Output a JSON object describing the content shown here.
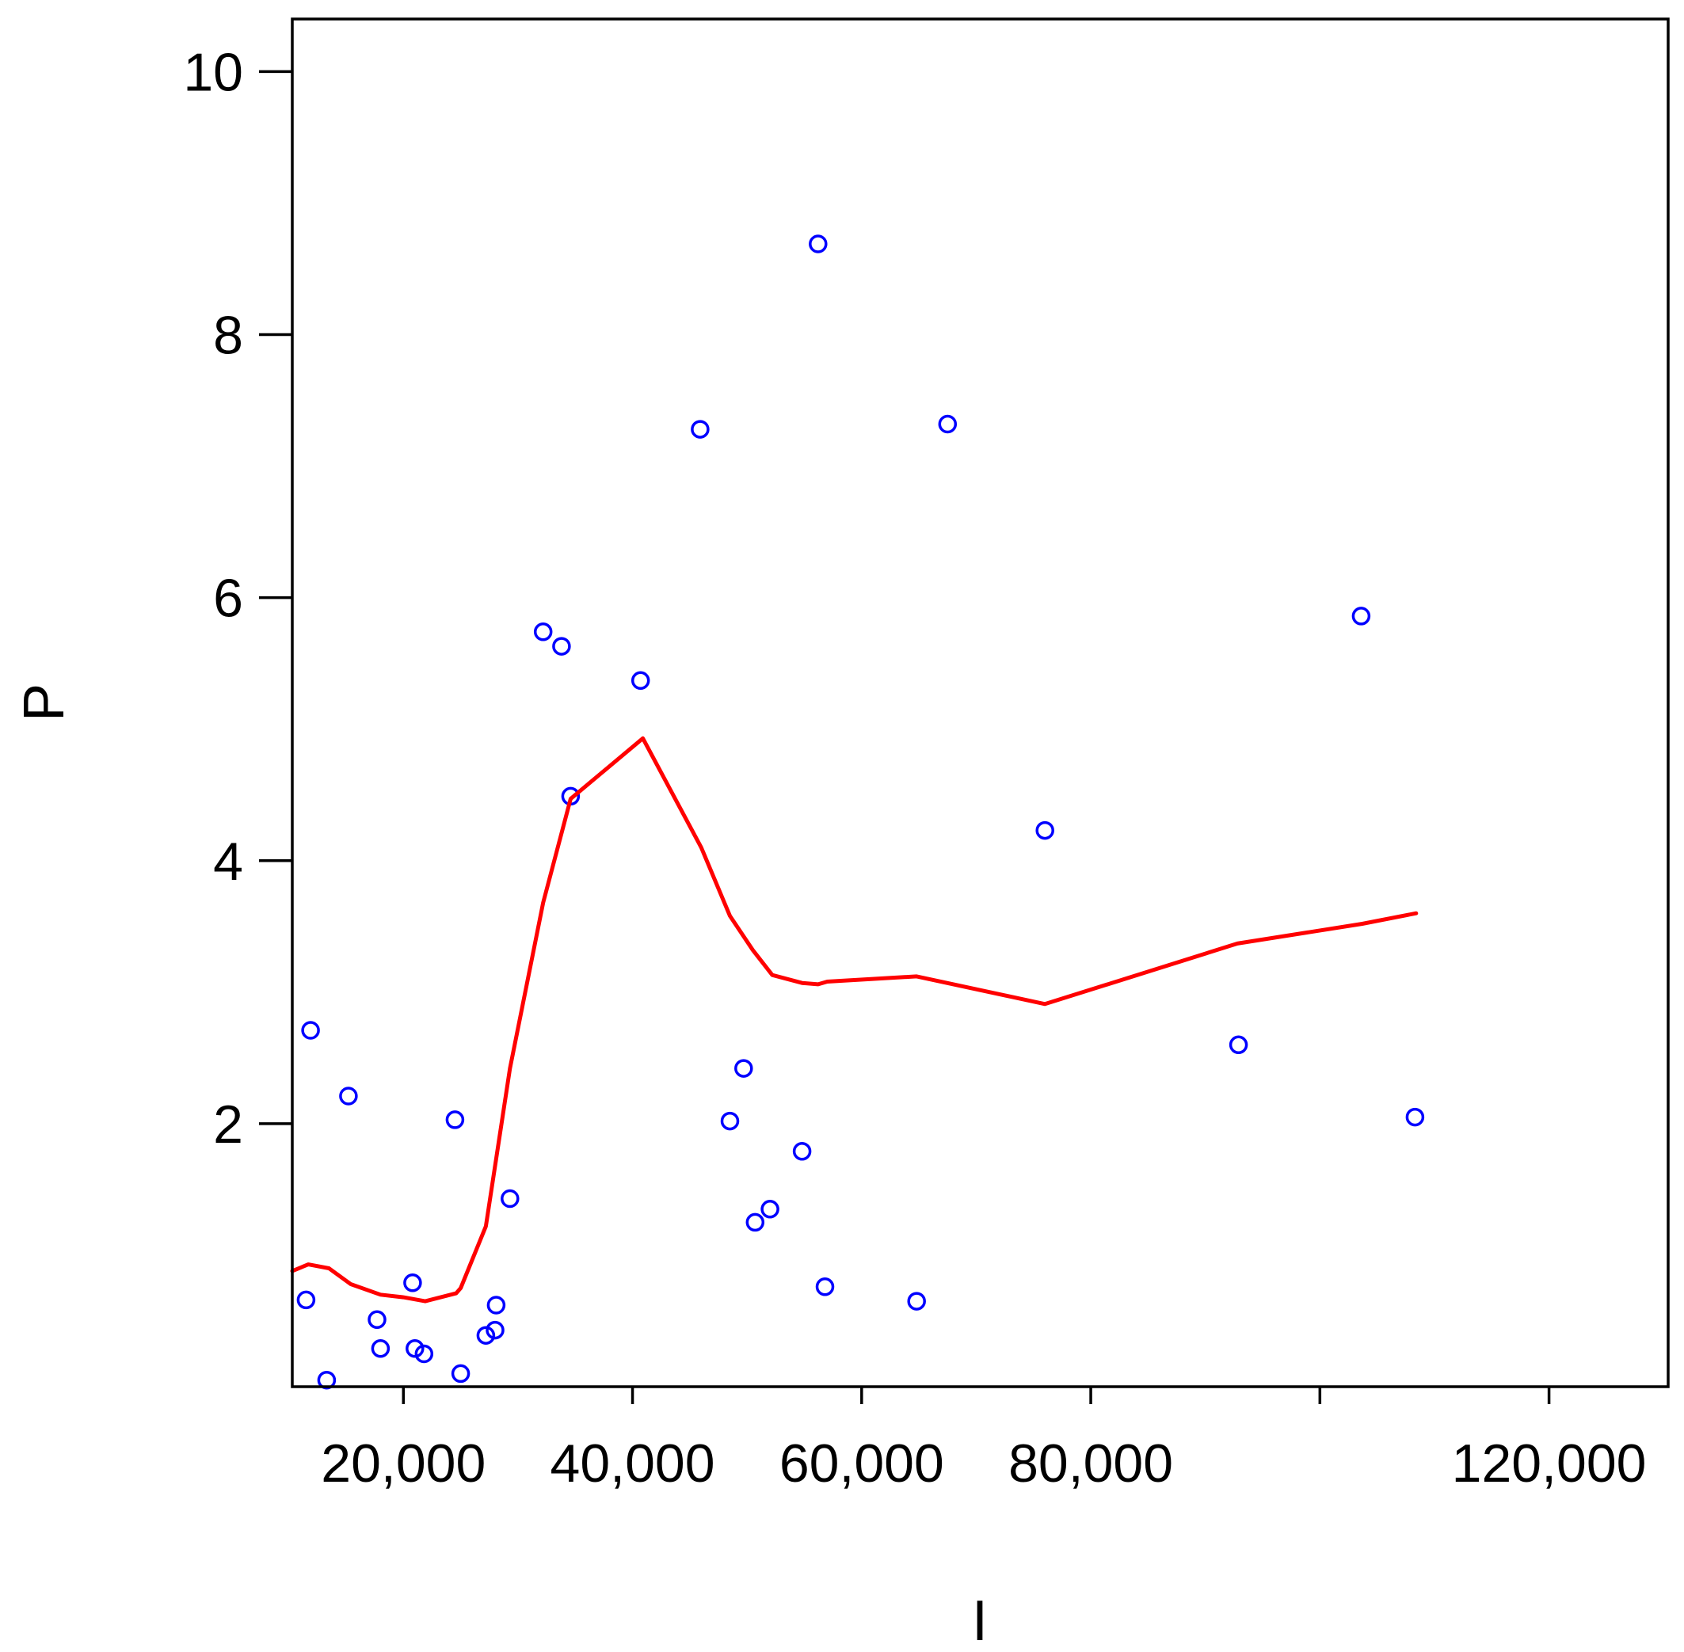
{
  "chart_data": {
    "type": "scatter",
    "title": "",
    "xlabel": "I",
    "ylabel": "P",
    "xlim": [
      10300,
      130400
    ],
    "ylim": [
      0,
      10.4
    ],
    "x_ticks": [
      {
        "value": 20000,
        "label": "20,000"
      },
      {
        "value": 40000,
        "label": "40,000"
      },
      {
        "value": 60000,
        "label": "60,000"
      },
      {
        "value": 80000,
        "label": "80,000"
      },
      {
        "value": 100000,
        "label": ""
      },
      {
        "value": 120000,
        "label": "120,000"
      }
    ],
    "y_ticks": [
      {
        "value": 2,
        "label": "2"
      },
      {
        "value": 4,
        "label": "4"
      },
      {
        "value": 6,
        "label": "6"
      },
      {
        "value": 8,
        "label": "8"
      },
      {
        "value": 10,
        "label": "10"
      }
    ],
    "grid": false,
    "series": [
      {
        "kind": "scatter",
        "marker": "open-circle",
        "color": "#0000ff",
        "points": [
          [
            11500,
            0.66
          ],
          [
            11900,
            2.71
          ],
          [
            13300,
            0.05
          ],
          [
            15200,
            2.21
          ],
          [
            17700,
            0.51
          ],
          [
            18000,
            0.29
          ],
          [
            21000,
            0.29
          ],
          [
            20800,
            0.79
          ],
          [
            21800,
            0.25
          ],
          [
            24500,
            2.03
          ],
          [
            25000,
            0.1
          ],
          [
            27200,
            0.39
          ],
          [
            28000,
            0.43
          ],
          [
            28100,
            0.62
          ],
          [
            29300,
            1.43
          ],
          [
            32200,
            5.74
          ],
          [
            33800,
            5.63
          ],
          [
            34600,
            4.49
          ],
          [
            40700,
            5.37
          ],
          [
            45900,
            7.28
          ],
          [
            48500,
            2.02
          ],
          [
            49700,
            2.42
          ],
          [
            50700,
            1.25
          ],
          [
            52000,
            1.35
          ],
          [
            54800,
            1.79
          ],
          [
            56200,
            8.69
          ],
          [
            56800,
            0.76
          ],
          [
            64800,
            0.65
          ],
          [
            67500,
            7.32
          ],
          [
            76000,
            4.23
          ],
          [
            92900,
            2.6
          ],
          [
            103600,
            5.86
          ],
          [
            108300,
            2.05
          ]
        ]
      },
      {
        "kind": "line",
        "color": "#ff0000",
        "points": [
          [
            10300,
            0.88
          ],
          [
            11700,
            0.93
          ],
          [
            13500,
            0.9
          ],
          [
            15400,
            0.78
          ],
          [
            18000,
            0.7
          ],
          [
            20000,
            0.68
          ],
          [
            21900,
            0.65
          ],
          [
            24600,
            0.71
          ],
          [
            25000,
            0.75
          ],
          [
            27200,
            1.22
          ],
          [
            29300,
            2.42
          ],
          [
            32200,
            3.68
          ],
          [
            34600,
            4.47
          ],
          [
            40900,
            4.93
          ],
          [
            46000,
            4.1
          ],
          [
            48500,
            3.58
          ],
          [
            50500,
            3.32
          ],
          [
            52200,
            3.13
          ],
          [
            54800,
            3.07
          ],
          [
            56200,
            3.06
          ],
          [
            57000,
            3.08
          ],
          [
            64800,
            3.12
          ],
          [
            76000,
            2.91
          ],
          [
            92800,
            3.37
          ],
          [
            103700,
            3.52
          ],
          [
            108400,
            3.6
          ]
        ]
      }
    ]
  }
}
